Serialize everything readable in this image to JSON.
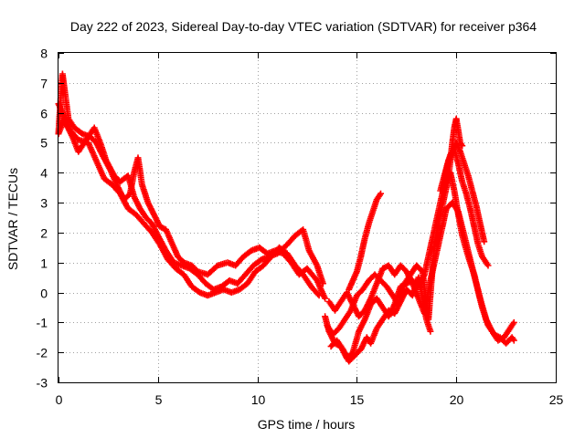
{
  "chart_data": {
    "type": "scatter",
    "title": "Day 222 of 2023, Sidereal Day-to-day VTEC variation (SDTVAR) for receiver p364",
    "xlabel": "GPS time / hours",
    "ylabel": "SDTVAR / TECUs",
    "xlim": [
      0,
      25
    ],
    "ylim": [
      -3,
      8
    ],
    "xticks": [
      "0",
      "5",
      "10",
      "15",
      "20",
      "25"
    ],
    "yticks": [
      "-3",
      "-2",
      "-1",
      "0",
      "1",
      "2",
      "3",
      "4",
      "5",
      "6",
      "7",
      "8"
    ],
    "grid": true,
    "marker": "+",
    "color": "#ff0000",
    "series": [
      {
        "name": "trace-1",
        "points": [
          [
            0.0,
            5.3
          ],
          [
            0.1,
            6.4
          ],
          [
            0.2,
            7.3
          ],
          [
            0.3,
            6.8
          ],
          [
            0.5,
            5.8
          ],
          [
            0.8,
            5.5
          ],
          [
            1.2,
            5.3
          ],
          [
            1.6,
            5.2
          ],
          [
            1.9,
            5.0
          ],
          [
            2.2,
            4.6
          ],
          [
            2.6,
            4.1
          ],
          [
            3.0,
            3.5
          ],
          [
            3.3,
            3.1
          ],
          [
            3.6,
            3.3
          ],
          [
            3.8,
            4.0
          ],
          [
            4.0,
            4.5
          ],
          [
            4.2,
            3.6
          ],
          [
            4.5,
            3.0
          ],
          [
            4.8,
            2.6
          ],
          [
            5.1,
            2.2
          ],
          [
            5.4,
            2.1
          ],
          [
            5.8,
            1.5
          ],
          [
            6.0,
            1.2
          ],
          [
            6.3,
            1.0
          ],
          [
            6.7,
            0.9
          ],
          [
            7.0,
            0.7
          ],
          [
            7.5,
            0.6
          ],
          [
            8.0,
            0.9
          ],
          [
            8.5,
            1.0
          ],
          [
            8.9,
            0.9
          ],
          [
            9.3,
            1.2
          ],
          [
            9.7,
            1.4
          ],
          [
            10.1,
            1.5
          ],
          [
            10.5,
            1.3
          ],
          [
            10.9,
            1.4
          ],
          [
            11.3,
            1.3
          ],
          [
            11.7,
            1.0
          ],
          [
            12.1,
            0.6
          ],
          [
            12.5,
            0.8
          ],
          [
            13.0,
            0.4
          ],
          [
            13.4,
            -0.2
          ]
        ]
      },
      {
        "name": "trace-2",
        "points": [
          [
            0.0,
            6.3
          ],
          [
            0.2,
            6.0
          ],
          [
            0.4,
            5.6
          ],
          [
            0.7,
            5.2
          ],
          [
            1.0,
            4.7
          ],
          [
            1.4,
            5.1
          ],
          [
            1.8,
            5.5
          ],
          [
            2.1,
            5.0
          ],
          [
            2.4,
            4.4
          ],
          [
            2.8,
            3.9
          ],
          [
            3.1,
            3.7
          ],
          [
            3.5,
            3.9
          ],
          [
            3.8,
            3.2
          ],
          [
            4.1,
            2.8
          ],
          [
            4.4,
            2.5
          ],
          [
            4.7,
            2.3
          ],
          [
            5.0,
            1.9
          ],
          [
            5.4,
            1.4
          ],
          [
            5.8,
            1.0
          ],
          [
            6.2,
            0.9
          ],
          [
            6.6,
            0.8
          ],
          [
            7.0,
            0.6
          ],
          [
            7.4,
            0.3
          ],
          [
            7.8,
            0.1
          ],
          [
            8.2,
            0.2
          ],
          [
            8.6,
            0.4
          ],
          [
            9.0,
            0.3
          ],
          [
            9.4,
            0.6
          ],
          [
            9.8,
            0.9
          ],
          [
            10.2,
            1.1
          ],
          [
            10.6,
            1.2
          ],
          [
            11.0,
            1.3
          ],
          [
            11.5,
            1.6
          ],
          [
            11.9,
            1.9
          ],
          [
            12.3,
            2.1
          ],
          [
            12.6,
            1.4
          ],
          [
            13.0,
            0.9
          ],
          [
            13.3,
            0.3
          ]
        ]
      },
      {
        "name": "trace-3",
        "points": [
          [
            0.0,
            5.3
          ],
          [
            0.3,
            5.8
          ],
          [
            0.6,
            5.4
          ],
          [
            1.0,
            5.1
          ],
          [
            1.5,
            5.0
          ],
          [
            1.9,
            4.4
          ],
          [
            2.3,
            3.8
          ],
          [
            2.7,
            3.6
          ],
          [
            3.1,
            3.3
          ],
          [
            3.5,
            2.8
          ],
          [
            3.9,
            2.6
          ],
          [
            4.3,
            2.3
          ],
          [
            4.7,
            2.0
          ],
          [
            5.1,
            1.6
          ],
          [
            5.5,
            1.1
          ],
          [
            5.9,
            0.8
          ],
          [
            6.3,
            0.6
          ],
          [
            6.7,
            0.2
          ],
          [
            7.1,
            0.0
          ],
          [
            7.5,
            -0.1
          ],
          [
            7.9,
            0.0
          ],
          [
            8.3,
            0.1
          ],
          [
            8.7,
            0.0
          ],
          [
            9.1,
            0.1
          ],
          [
            9.5,
            0.3
          ],
          [
            9.9,
            0.7
          ],
          [
            10.3,
            0.9
          ],
          [
            10.7,
            1.2
          ],
          [
            11.1,
            1.5
          ],
          [
            11.5,
            1.3
          ],
          [
            11.9,
            0.9
          ],
          [
            12.3,
            0.6
          ],
          [
            12.7,
            0.2
          ],
          [
            13.1,
            -0.1
          ]
        ]
      },
      {
        "name": "trace-4",
        "points": [
          [
            13.4,
            -0.8
          ],
          [
            13.6,
            -1.3
          ],
          [
            13.9,
            -1.7
          ],
          [
            14.2,
            -1.8
          ],
          [
            14.5,
            -2.2
          ],
          [
            14.8,
            -2.0
          ],
          [
            15.1,
            -1.3
          ],
          [
            15.4,
            -0.9
          ],
          [
            15.7,
            -0.4
          ],
          [
            16.0,
            -0.2
          ],
          [
            16.3,
            -0.5
          ],
          [
            16.6,
            -0.8
          ],
          [
            16.9,
            -0.4
          ],
          [
            17.2,
            0.2
          ],
          [
            17.5,
            0.3
          ],
          [
            17.8,
            0.4
          ],
          [
            18.1,
            0.2
          ],
          [
            18.4,
            0.6
          ],
          [
            18.7,
            1.5
          ],
          [
            19.0,
            2.4
          ],
          [
            19.3,
            3.3
          ],
          [
            19.5,
            4.1
          ],
          [
            19.7,
            4.6
          ],
          [
            19.9,
            4.8
          ],
          [
            20.1,
            4.3
          ],
          [
            20.3,
            3.7
          ],
          [
            20.5,
            3.3
          ],
          [
            20.7,
            2.8
          ],
          [
            20.9,
            2.2
          ],
          [
            21.1,
            1.6
          ],
          [
            21.3,
            1.2
          ],
          [
            21.6,
            0.9
          ]
        ]
      },
      {
        "name": "trace-5",
        "points": [
          [
            13.5,
            -1.1
          ],
          [
            13.8,
            -1.4
          ],
          [
            14.1,
            -1.2
          ],
          [
            14.4,
            -0.9
          ],
          [
            14.7,
            -0.6
          ],
          [
            15.0,
            -0.1
          ],
          [
            15.3,
            0.1
          ],
          [
            15.6,
            0.4
          ],
          [
            15.9,
            0.6
          ],
          [
            16.2,
            0.4
          ],
          [
            16.5,
            0.2
          ],
          [
            16.8,
            -0.1
          ],
          [
            17.1,
            -0.4
          ],
          [
            17.4,
            0.3
          ],
          [
            17.7,
            0.6
          ],
          [
            18.0,
            0.9
          ],
          [
            18.3,
            0.7
          ],
          [
            18.6,
            -0.9
          ],
          [
            18.9,
            1.6
          ],
          [
            19.2,
            2.6
          ],
          [
            19.5,
            3.5
          ],
          [
            19.7,
            4.0
          ],
          [
            19.9,
            3.4
          ],
          [
            20.1,
            2.6
          ],
          [
            20.3,
            1.9
          ],
          [
            20.6,
            1.2
          ],
          [
            20.9,
            0.6
          ],
          [
            21.2,
            -0.2
          ],
          [
            21.5,
            -0.9
          ],
          [
            21.8,
            -1.3
          ],
          [
            22.1,
            -1.6
          ],
          [
            22.4,
            -1.5
          ],
          [
            22.7,
            -1.2
          ],
          [
            22.9,
            -1.0
          ]
        ]
      },
      {
        "name": "trace-6",
        "points": [
          [
            13.6,
            -0.3
          ],
          [
            13.9,
            -0.6
          ],
          [
            14.2,
            -0.3
          ],
          [
            14.5,
            0.0
          ],
          [
            14.8,
            -0.4
          ],
          [
            15.1,
            -0.8
          ],
          [
            15.4,
            -0.6
          ],
          [
            15.7,
            -0.2
          ],
          [
            16.0,
            0.3
          ],
          [
            16.3,
            0.8
          ],
          [
            16.6,
            0.9
          ],
          [
            16.9,
            0.6
          ],
          [
            17.2,
            0.9
          ],
          [
            17.5,
            0.7
          ],
          [
            17.8,
            0.3
          ],
          [
            18.1,
            -0.2
          ],
          [
            18.4,
            -0.7
          ],
          [
            18.7,
            0.4
          ],
          [
            19.0,
            1.3
          ],
          [
            19.3,
            2.2
          ],
          [
            19.5,
            2.8
          ],
          [
            19.8,
            3.0
          ],
          [
            20.1,
            2.7
          ],
          [
            20.4,
            1.9
          ],
          [
            20.7,
            1.1
          ],
          [
            21.0,
            0.3
          ],
          [
            21.3,
            -0.5
          ],
          [
            21.6,
            -1.1
          ],
          [
            21.9,
            -1.4
          ],
          [
            22.2,
            -1.5
          ],
          [
            22.5,
            -1.7
          ],
          [
            22.8,
            -1.5
          ],
          [
            22.9,
            -1.6
          ]
        ]
      },
      {
        "name": "trace-7",
        "points": [
          [
            13.7,
            -1.8
          ],
          [
            14.0,
            -1.6
          ],
          [
            14.3,
            -1.9
          ],
          [
            14.6,
            -2.3
          ],
          [
            14.9,
            -2.1
          ],
          [
            15.2,
            -1.9
          ],
          [
            15.5,
            -1.5
          ],
          [
            15.7,
            -1.7
          ],
          [
            16.0,
            -1.2
          ],
          [
            16.3,
            -0.9
          ],
          [
            16.6,
            -0.6
          ],
          [
            16.9,
            -0.7
          ],
          [
            17.2,
            -0.3
          ],
          [
            17.5,
            0.1
          ],
          [
            17.8,
            -0.1
          ],
          [
            18.1,
            0.5
          ],
          [
            18.3,
            -0.2
          ],
          [
            18.5,
            -0.9
          ],
          [
            18.7,
            -1.3
          ]
        ]
      },
      {
        "name": "trace-8",
        "points": [
          [
            14.6,
            0.1
          ],
          [
            14.8,
            0.4
          ],
          [
            15.0,
            0.7
          ],
          [
            15.2,
            1.2
          ],
          [
            15.4,
            1.8
          ],
          [
            15.6,
            2.3
          ],
          [
            15.8,
            2.7
          ],
          [
            16.0,
            3.1
          ],
          [
            16.2,
            3.3
          ]
        ]
      },
      {
        "name": "trace-9",
        "points": [
          [
            19.2,
            3.4
          ],
          [
            19.4,
            3.9
          ],
          [
            19.6,
            4.4
          ],
          [
            19.8,
            4.7
          ],
          [
            20.0,
            5.0
          ],
          [
            20.2,
            4.7
          ],
          [
            20.4,
            4.3
          ],
          [
            20.6,
            3.9
          ],
          [
            20.8,
            3.4
          ],
          [
            21.0,
            2.9
          ],
          [
            21.2,
            2.3
          ],
          [
            21.4,
            1.7
          ]
        ]
      },
      {
        "name": "trace-10",
        "points": [
          [
            19.6,
            3.8
          ],
          [
            19.7,
            4.4
          ],
          [
            19.8,
            5.0
          ],
          [
            19.9,
            5.5
          ],
          [
            20.0,
            5.8
          ],
          [
            20.1,
            5.4
          ],
          [
            20.2,
            5.0
          ],
          [
            20.3,
            4.9
          ]
        ]
      }
    ]
  }
}
